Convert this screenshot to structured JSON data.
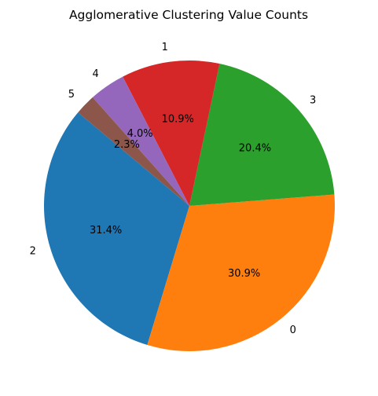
{
  "chart_data": {
    "type": "pie",
    "title": "Agglomerative Clustering Value Counts",
    "slices": [
      {
        "label": "2",
        "value": 31.4,
        "pct_label": "31.4%",
        "color": "#1f77b4"
      },
      {
        "label": "0",
        "value": 30.9,
        "pct_label": "30.9%",
        "color": "#ff7f0e"
      },
      {
        "label": "3",
        "value": 20.4,
        "pct_label": "20.4%",
        "color": "#2ca02c"
      },
      {
        "label": "1",
        "value": 10.9,
        "pct_label": "10.9%",
        "color": "#d62728"
      },
      {
        "label": "4",
        "value": 4.0,
        "pct_label": "4.0%",
        "color": "#9467bd"
      },
      {
        "label": "5",
        "value": 2.3,
        "pct_label": "2.3%",
        "color": "#8c564b"
      }
    ],
    "start_angle_deg": 140,
    "direction": "counterclockwise",
    "legend": "none"
  }
}
